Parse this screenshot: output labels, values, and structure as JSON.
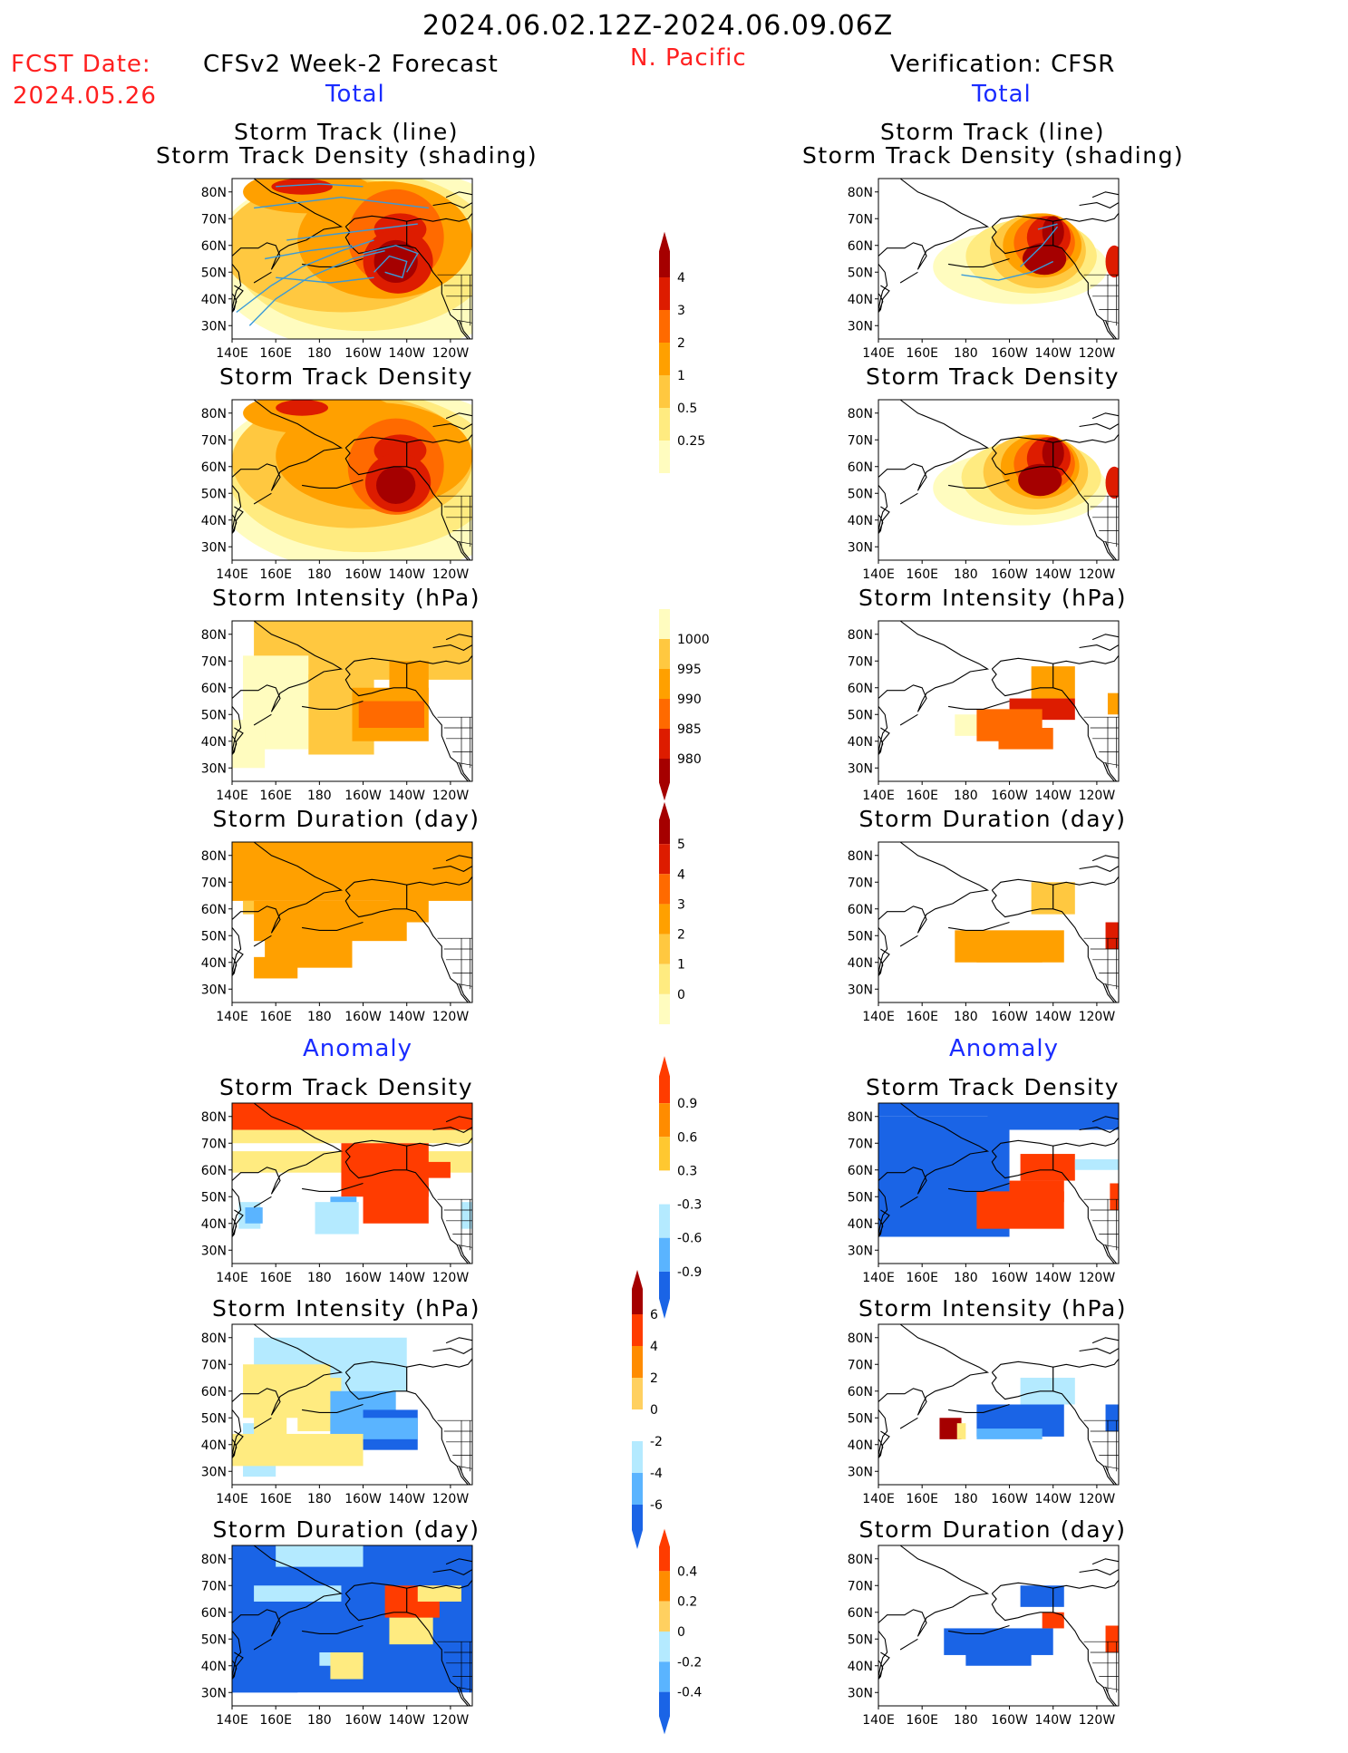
{
  "header": {
    "title": "2024.06.02.12Z-2024.06.09.06Z",
    "fcst_label": "FCST Date:",
    "fcst_date": "2024.05.26",
    "model": "CFSv2 Week-2 Forecast",
    "region": "N. Pacific",
    "verification": "Verification: CFSR",
    "total_left": "Total",
    "total_right": "Total",
    "anomaly_left": "Anomaly",
    "anomaly_right": "Anomaly"
  },
  "axes": {
    "lat_labels": [
      "80N",
      "70N",
      "60N",
      "50N",
      "40N",
      "30N"
    ],
    "lon_labels": [
      "140E",
      "160E",
      "180",
      "160W",
      "140W",
      "120W"
    ]
  },
  "panel_titles": {
    "track_line": "Storm Track (line)",
    "track_shading": "Storm Track Density (shading)",
    "density": "Storm Track Density",
    "intensity": "Storm Intensity (hPa)",
    "duration": "Storm Duration (day)"
  },
  "colorbars": {
    "density": {
      "labels": [
        "4",
        "3",
        "2",
        "1",
        "0.5",
        "0.25"
      ],
      "colors": [
        "#a50000",
        "#dd1c00",
        "#ff6a00",
        "#ffa000",
        "#ffc840",
        "#ffeb80",
        "#fffcbf"
      ]
    },
    "intensity": {
      "labels": [
        "1000",
        "995",
        "990",
        "985",
        "980"
      ],
      "colors": [
        "#fffcbf",
        "#ffc840",
        "#ffa000",
        "#ff6a00",
        "#dd1c00",
        "#a50000"
      ]
    },
    "duration": {
      "labels": [
        "5",
        "4",
        "3",
        "2",
        "1",
        "0"
      ],
      "colors": [
        "#a50000",
        "#dd1c00",
        "#ff6a00",
        "#ffa000",
        "#ffc840",
        "#ffeb80",
        "#fffcbf"
      ]
    },
    "anom_density": {
      "labels": [
        "0.9",
        "0.6",
        "0.3",
        "-0.3",
        "-0.6",
        "-0.9"
      ],
      "colors": [
        "#ff3c00",
        "#ff8c00",
        "#ffc830",
        "#ffffff",
        "#b4eaff",
        "#5ab4ff",
        "#1a64e6"
      ]
    },
    "anom_intensity": {
      "labels": [
        "6",
        "4",
        "2",
        "0",
        "-2",
        "-4",
        "-6"
      ],
      "colors": [
        "#a50000",
        "#ff3c00",
        "#ff8c00",
        "#ffd060",
        "#ffffff",
        "#b4eaff",
        "#5ab4ff",
        "#1a64e6"
      ]
    },
    "anom_duration": {
      "labels": [
        "0.4",
        "0.2",
        "0",
        "-0.2",
        "-0.4"
      ],
      "colors": [
        "#ff3c00",
        "#ff8c00",
        "#ffd060",
        "#b4eaff",
        "#5ab4ff",
        "#1a64e6"
      ]
    }
  },
  "colors": {
    "dark_red": "#a50000",
    "red": "#dd1c00",
    "orange": "#ff6a00",
    "light_orange": "#ffa000",
    "yellow_orange": "#ffc840",
    "yellow": "#ffeb80",
    "pale": "#fffcbf",
    "anom_blue": "#1a64e6",
    "anom_mid_blue": "#5ab4ff",
    "anom_light_blue": "#b4eaff",
    "anom_red": "#ff3c00",
    "track_line": "#3a9ad8"
  }
}
